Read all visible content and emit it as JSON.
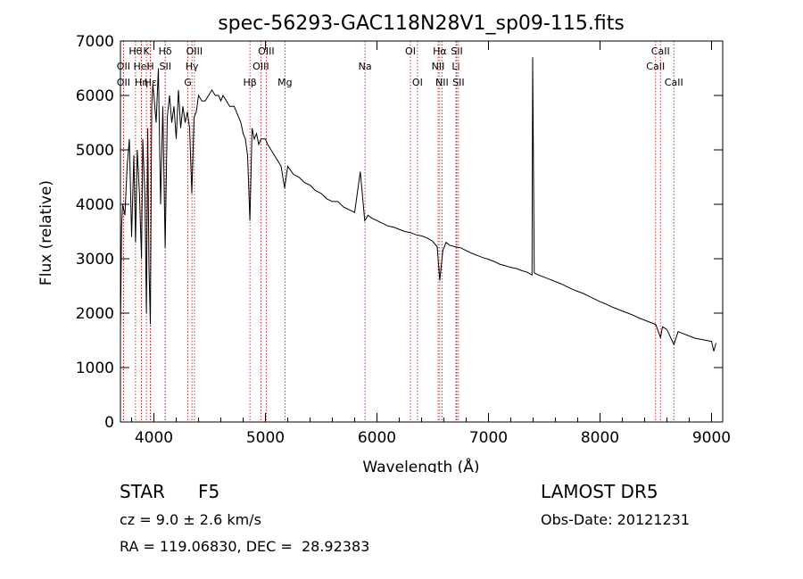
{
  "chart_data": {
    "type": "line",
    "title": "spec-56293-GAC118N28V1_sp09-115.fits",
    "xlabel": "Wavelength (Å)",
    "ylabel": "Flux (relative)",
    "xlim": [
      3700,
      9100
    ],
    "ylim": [
      0,
      7000
    ],
    "x_ticks": [
      4000,
      5000,
      6000,
      7000,
      8000,
      9000
    ],
    "y_ticks": [
      0,
      1000,
      2000,
      3000,
      4000,
      5000,
      6000,
      7000
    ],
    "grid": false,
    "series": [
      {
        "x": [
          3700,
          3710,
          3720,
          3740,
          3760,
          3780,
          3800,
          3820,
          3835,
          3850,
          3870,
          3889,
          3900,
          3920,
          3933,
          3945,
          3955,
          3968,
          3980,
          3990,
          4000,
          4020,
          4040,
          4060,
          4080,
          4101,
          4120,
          4140,
          4160,
          4180,
          4200,
          4220,
          4240,
          4260,
          4280,
          4300,
          4320,
          4340,
          4360,
          4380,
          4400,
          4430,
          4460,
          4490,
          4520,
          4550,
          4580,
          4600,
          4620,
          4650,
          4680,
          4700,
          4720,
          4740,
          4760,
          4780,
          4800,
          4820,
          4840,
          4861,
          4880,
          4900,
          4920,
          4940,
          4960,
          4980,
          5000,
          5020,
          5050,
          5080,
          5110,
          5140,
          5172,
          5200,
          5250,
          5300,
          5350,
          5400,
          5450,
          5500,
          5550,
          5600,
          5650,
          5700,
          5750,
          5800,
          5850,
          5890,
          5920,
          5950,
          6000,
          6050,
          6100,
          6150,
          6200,
          6250,
          6300,
          6350,
          6400,
          6450,
          6500,
          6540,
          6563,
          6590,
          6620,
          6650,
          6700,
          6750,
          6800,
          6850,
          6900,
          6950,
          7000,
          7050,
          7100,
          7150,
          7200,
          7250,
          7300,
          7350,
          7390,
          7396,
          7410,
          7450,
          7500,
          7550,
          7600,
          7650,
          7700,
          7750,
          7800,
          7850,
          7900,
          7950,
          8000,
          8050,
          8100,
          8150,
          8200,
          8250,
          8300,
          8350,
          8400,
          8450,
          8500,
          8542,
          8560,
          8600,
          8662,
          8700,
          8750,
          8800,
          8850,
          8900,
          8950,
          9000,
          9020,
          9040
        ],
        "y": [
          1700,
          3600,
          4000,
          3800,
          4700,
          5200,
          3400,
          4900,
          3300,
          5000,
          4200,
          3000,
          5200,
          4100,
          2000,
          5400,
          2900,
          1800,
          5800,
          6200,
          6000,
          5500,
          6500,
          4000,
          5800,
          3200,
          5600,
          6000,
          5500,
          5800,
          5200,
          6100,
          5400,
          5800,
          5500,
          5700,
          5400,
          4200,
          5600,
          5700,
          6000,
          5900,
          5900,
          6000,
          6100,
          6000,
          6000,
          5900,
          6000,
          5900,
          5800,
          5800,
          5800,
          5700,
          5600,
          5500,
          5300,
          5200,
          4900,
          3700,
          5400,
          5200,
          5300,
          5100,
          5200,
          5200,
          5200,
          5100,
          5000,
          4900,
          4800,
          4700,
          4300,
          4700,
          4550,
          4500,
          4400,
          4350,
          4250,
          4200,
          4100,
          4050,
          4050,
          3950,
          3900,
          3850,
          4600,
          3700,
          3800,
          3750,
          3700,
          3650,
          3600,
          3580,
          3540,
          3500,
          3480,
          3440,
          3420,
          3380,
          3320,
          3220,
          2600,
          3150,
          3300,
          3250,
          3220,
          3200,
          3150,
          3100,
          3060,
          3020,
          2990,
          2950,
          2900,
          2870,
          2840,
          2820,
          2780,
          2750,
          2700,
          6700,
          2740,
          2700,
          2660,
          2620,
          2580,
          2540,
          2490,
          2440,
          2400,
          2360,
          2310,
          2260,
          2210,
          2170,
          2120,
          2080,
          2040,
          2000,
          1960,
          1910,
          1870,
          1830,
          1790,
          1550,
          1750,
          1700,
          1420,
          1660,
          1620,
          1580,
          1540,
          1520,
          1500,
          1480,
          1300,
          1450
        ]
      }
    ],
    "line_markers": [
      {
        "wl": 3727,
        "label": "OII",
        "row": 1
      },
      {
        "wl": 3727,
        "label": "OII",
        "row": 2
      },
      {
        "wl": 3835,
        "label": "Hθ",
        "row": 0
      },
      {
        "wl": 3889,
        "label": "HeI",
        "row": 1
      },
      {
        "wl": 3889,
        "label": "Hη",
        "row": 2
      },
      {
        "wl": 3933,
        "label": "K",
        "row": 0
      },
      {
        "wl": 3968,
        "label": "H",
        "row": 1
      },
      {
        "wl": 3970,
        "label": "Hε",
        "row": 2
      },
      {
        "wl": 4101,
        "label": "Hδ",
        "row": 0
      },
      {
        "wl": 4102,
        "label": "SII",
        "row": 1
      },
      {
        "wl": 4304,
        "label": "G",
        "row": 2
      },
      {
        "wl": 4341,
        "label": "Hγ",
        "row": 1
      },
      {
        "wl": 4363,
        "label": "OIII",
        "row": 0
      },
      {
        "wl": 4861,
        "label": "Hβ",
        "row": 2
      },
      {
        "wl": 4959,
        "label": "OIII",
        "row": 1
      },
      {
        "wl": 5007,
        "label": "OIII",
        "row": 0
      },
      {
        "wl": 5175,
        "label": "Mg",
        "row": 2
      },
      {
        "wl": 5893,
        "label": "Na",
        "row": 1
      },
      {
        "wl": 6300,
        "label": "OI",
        "row": 0
      },
      {
        "wl": 6363,
        "label": "OI",
        "row": 2
      },
      {
        "wl": 6548,
        "label": "NII",
        "row": 1
      },
      {
        "wl": 6563,
        "label": "Hα",
        "row": 0
      },
      {
        "wl": 6583,
        "label": "NII",
        "row": 2
      },
      {
        "wl": 6708,
        "label": "Li",
        "row": 1
      },
      {
        "wl": 6716,
        "label": "SII",
        "row": 0
      },
      {
        "wl": 6731,
        "label": "SII",
        "row": 2
      },
      {
        "wl": 8498,
        "label": "CaII",
        "row": 1
      },
      {
        "wl": 8542,
        "label": "CaII",
        "row": 0
      },
      {
        "wl": 8662,
        "label": "CaII",
        "row": 2
      }
    ]
  },
  "footer": {
    "object_type": "STAR",
    "subclass": "F5",
    "survey": "LAMOST DR5",
    "redshift": "cz = 9.0 ± 2.6 km/s",
    "obs_date": "Obs-Date: 20121231",
    "coords": "RA = 119.06830, DEC =  28.92383"
  },
  "colors": {
    "spectrum": "#000000",
    "line_marker": "#c00000"
  }
}
